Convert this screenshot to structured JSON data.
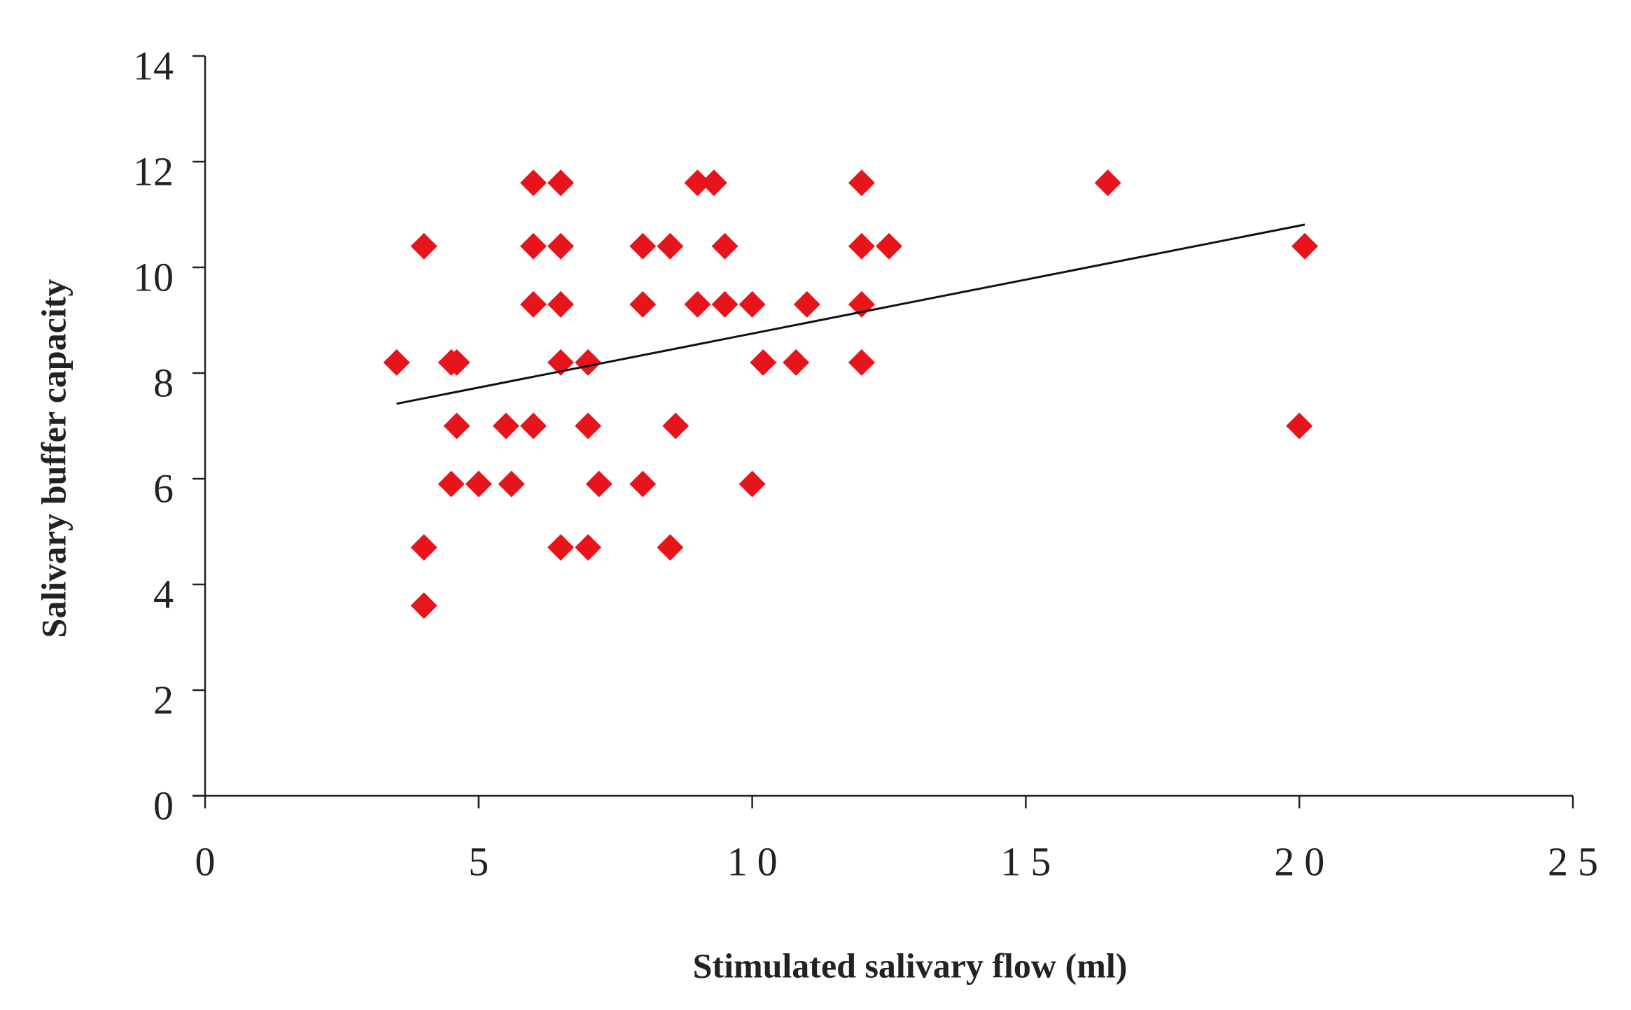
{
  "chart_data": {
    "type": "scatter",
    "x_label": "Stimulated salivary flow (ml)",
    "y_label": "Salivary buffer capacity",
    "color": "#e8141b",
    "xlim": [
      0,
      25
    ],
    "xticks": [
      0,
      5,
      10,
      15,
      20,
      25
    ],
    "ylim": [
      0,
      14
    ],
    "yticks": [
      0,
      2,
      4,
      6,
      8,
      10,
      12,
      14
    ],
    "x": [
      6.0,
      6.5,
      9.0,
      9.3,
      12.0,
      16.5,
      4.0,
      6.0,
      6.5,
      8.0,
      8.5,
      9.5,
      12.0,
      12.5,
      20.1,
      6.0,
      6.5,
      8.0,
      9.0,
      9.5,
      10.0,
      11.0,
      12.0,
      3.5,
      4.5,
      4.6,
      6.5,
      7.0,
      10.2,
      10.8,
      12.0,
      4.6,
      5.5,
      6.0,
      7.0,
      8.6,
      20.0,
      4.5,
      5.0,
      5.6,
      7.2,
      8.0,
      10.0,
      4.0,
      6.5,
      7.0,
      8.5,
      4.0
    ],
    "values": [
      11.6,
      11.6,
      11.6,
      11.6,
      11.6,
      11.6,
      10.4,
      10.4,
      10.4,
      10.4,
      10.4,
      10.4,
      10.4,
      10.4,
      10.4,
      9.3,
      9.3,
      9.3,
      9.3,
      9.3,
      9.3,
      9.3,
      9.3,
      8.2,
      8.2,
      8.2,
      8.2,
      8.2,
      8.2,
      8.2,
      8.2,
      7.0,
      7.0,
      7.0,
      7.0,
      7.0,
      7.0,
      5.9,
      5.9,
      5.9,
      5.9,
      5.9,
      5.9,
      4.7,
      4.7,
      4.7,
      4.7,
      3.6
    ],
    "trendline": {
      "x": [
        3.5,
        20.1
      ],
      "values": [
        7.42,
        10.81
      ],
      "color": "#111111"
    }
  }
}
